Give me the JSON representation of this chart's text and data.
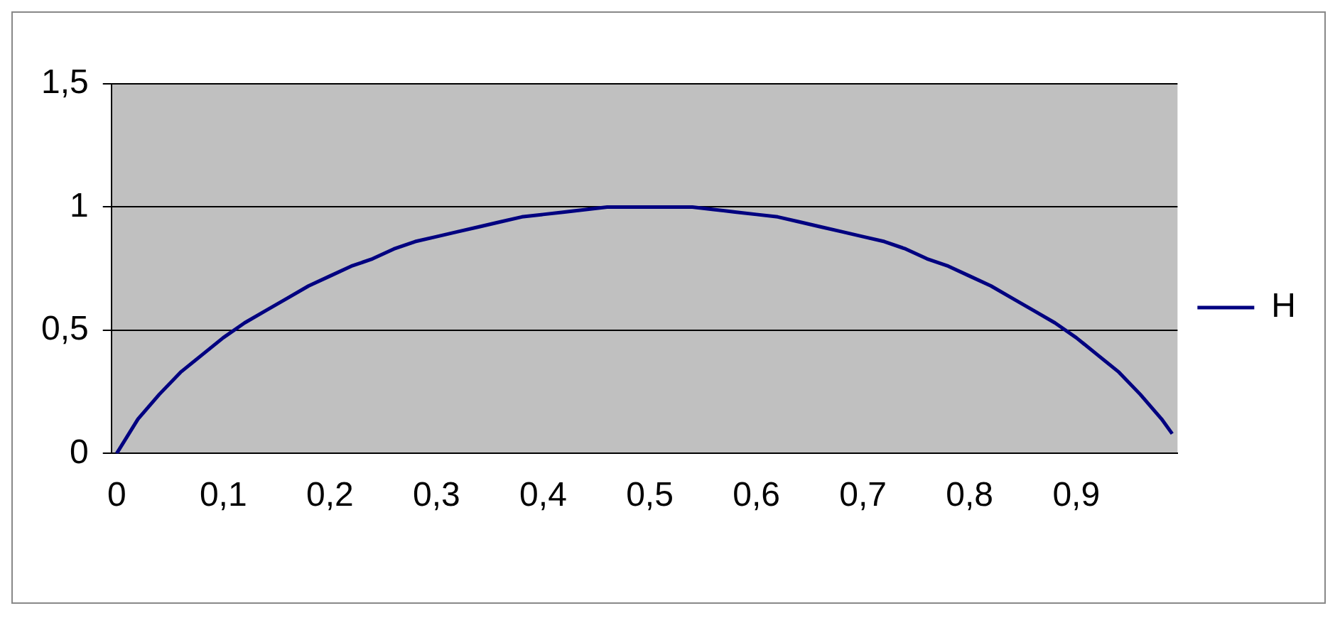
{
  "chart_data": {
    "type": "line",
    "x": [
      0,
      0.02,
      0.04,
      0.06,
      0.08,
      0.1,
      0.12,
      0.14,
      0.16,
      0.18,
      0.2,
      0.22,
      0.24,
      0.26,
      0.28,
      0.3,
      0.32,
      0.34,
      0.36,
      0.38,
      0.4,
      0.42,
      0.44,
      0.46,
      0.48,
      0.5,
      0.52,
      0.54,
      0.56,
      0.58,
      0.6,
      0.62,
      0.64,
      0.66,
      0.68,
      0.7,
      0.72,
      0.74,
      0.76,
      0.78,
      0.8,
      0.82,
      0.84,
      0.86,
      0.88,
      0.9,
      0.92,
      0.94,
      0.96,
      0.98,
      0.99
    ],
    "series": [
      {
        "name": "H",
        "color": "#000080",
        "values": [
          0,
          0.14,
          0.24,
          0.33,
          0.4,
          0.47,
          0.53,
          0.58,
          0.63,
          0.68,
          0.72,
          0.76,
          0.79,
          0.83,
          0.86,
          0.88,
          0.9,
          0.92,
          0.94,
          0.96,
          0.97,
          0.98,
          0.99,
          1,
          1,
          1,
          1,
          1,
          0.99,
          0.98,
          0.97,
          0.96,
          0.94,
          0.92,
          0.9,
          0.88,
          0.86,
          0.83,
          0.79,
          0.76,
          0.72,
          0.68,
          0.63,
          0.58,
          0.53,
          0.47,
          0.4,
          0.33,
          0.24,
          0.14,
          0.08
        ]
      }
    ],
    "xlim": [
      -0.005,
      0.995
    ],
    "xticks": [
      0,
      {
        "value": 0.1,
        "label": "0,1"
      },
      {
        "value": 0.2,
        "label": "0,2"
      },
      {
        "value": 0.3,
        "label": "0,3"
      },
      {
        "value": 0.4,
        "label": "0,4"
      },
      {
        "value": 0.5,
        "label": "0,5"
      },
      {
        "value": 0.6,
        "label": "0,6"
      },
      {
        "value": 0.7,
        "label": "0,7"
      },
      {
        "value": 0.8,
        "label": "0,8"
      },
      {
        "value": 0.9,
        "label": "0,9"
      }
    ],
    "ylim": [
      0,
      1.5
    ],
    "yticks": [
      0,
      {
        "value": 0.5,
        "label": "0,5"
      },
      1,
      {
        "value": 1.5,
        "label": "1,5"
      }
    ],
    "grid": "y",
    "legend": "right",
    "marker": "none",
    "line_style": "solid"
  }
}
